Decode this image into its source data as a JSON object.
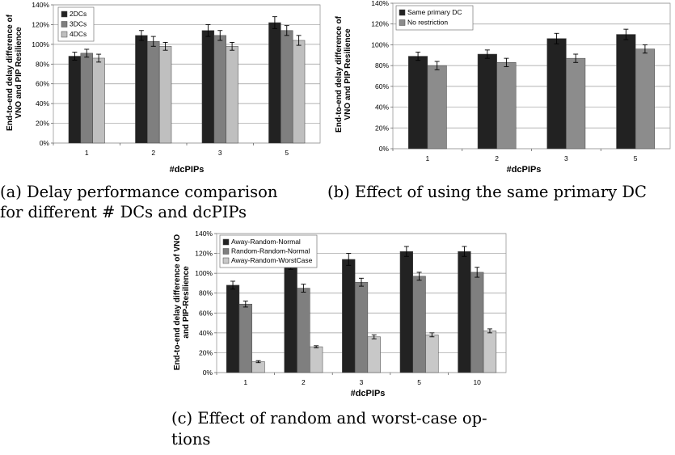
{
  "captions": {
    "a_line1": "(a)  Delay  performance  comparison",
    "a_line2": "for different # DCs and dcPIPs",
    "b_line1": "(b) Effect of using the same primary DC",
    "c_line1": "(c) Effect of random and worst-case op-",
    "c_line2": "tions"
  },
  "chart_data": [
    {
      "type": "bar",
      "xlabel": "#dcPIPs",
      "ylabel_lines": [
        "End-to-end delay difference of",
        "VNO and PIP Resilience"
      ],
      "categories": [
        "1",
        "2",
        "3",
        "5"
      ],
      "ylim": [
        0,
        140
      ],
      "yticks": [
        "0%",
        "20%",
        "40%",
        "60%",
        "80%",
        "100%",
        "120%",
        "140%"
      ],
      "grid": true,
      "legend_position": "top-left",
      "series": [
        {
          "name": "2DCs",
          "color": "#222222",
          "values": [
            88,
            109,
            114,
            122
          ],
          "errors": [
            4,
            5,
            6,
            6
          ]
        },
        {
          "name": "3DCs",
          "color": "#7f7f7f",
          "values": [
            91,
            103,
            109,
            114
          ],
          "errors": [
            4,
            5,
            5,
            5
          ]
        },
        {
          "name": "4DCs",
          "color": "#bfbfbf",
          "values": [
            86,
            98,
            98,
            104
          ],
          "errors": [
            4,
            4,
            4,
            5
          ]
        }
      ]
    },
    {
      "type": "bar",
      "xlabel": "#dcPIPs",
      "ylabel_lines": [
        "End-to-end delay difference of",
        "VNO and PIP Resilience"
      ],
      "categories": [
        "1",
        "2",
        "3",
        "5"
      ],
      "ylim": [
        0,
        140
      ],
      "yticks": [
        "0%",
        "20%",
        "40%",
        "60%",
        "80%",
        "100%",
        "120%",
        "140%"
      ],
      "grid": true,
      "legend_position": "top-left",
      "series": [
        {
          "name": "Same primary DC",
          "color": "#222222",
          "values": [
            89,
            91,
            106,
            110
          ],
          "errors": [
            4,
            4,
            5,
            5
          ]
        },
        {
          "name": "No restriction",
          "color": "#8c8c8c",
          "values": [
            80,
            83,
            87,
            96
          ],
          "errors": [
            4,
            4,
            4,
            4
          ]
        }
      ]
    },
    {
      "type": "bar",
      "xlabel": "#dcPIPs",
      "ylabel_lines": [
        "End-to-end delay difference of VNO",
        "and PIP-Resilience"
      ],
      "categories": [
        "1",
        "2",
        "3",
        "5",
        "10"
      ],
      "ylim": [
        0,
        140
      ],
      "yticks": [
        "0%",
        "20%",
        "40%",
        "60%",
        "80%",
        "100%",
        "120%",
        "140%"
      ],
      "grid": true,
      "legend_position": "top-left",
      "series": [
        {
          "name": "Away-Random-Normal",
          "color": "#222222",
          "values": [
            88,
            109,
            114,
            122,
            122
          ],
          "errors": [
            4,
            5,
            6,
            5,
            5
          ]
        },
        {
          "name": "Random-Random-Normal",
          "color": "#7f7f7f",
          "values": [
            69,
            85,
            91,
            97,
            101
          ],
          "errors": [
            3,
            4,
            4,
            4,
            5
          ]
        },
        {
          "name": "Away-Random-WorstCase",
          "color": "#c8c8c8",
          "values": [
            11,
            26,
            36,
            38,
            42
          ],
          "errors": [
            1,
            1,
            2,
            2,
            2
          ]
        }
      ]
    }
  ]
}
